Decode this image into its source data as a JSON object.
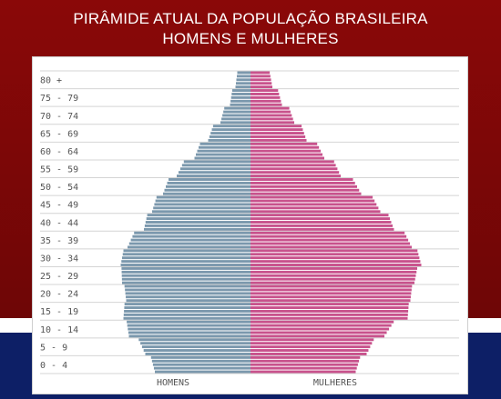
{
  "slide": {
    "title_line1": "PIRÂMIDE ATUAL DA POPULAÇÃO BRASILEIRA",
    "title_line2": "HOMENS E MULHERES"
  },
  "colors": {
    "background_top": "#7a0a0a",
    "background_bottom": "#0d1f66",
    "men_bar": "#7b98ad",
    "women_bar": "#c8528c"
  },
  "chart_data": {
    "type": "bar",
    "orientation": "horizontal-population-pyramid",
    "title": "",
    "age_groups": [
      "0 - 4",
      "5 - 9",
      "10 - 14",
      "15 - 19",
      "20 - 24",
      "25 - 29",
      "30 - 34",
      "35 - 39",
      "40 - 44",
      "45 - 49",
      "50 - 54",
      "55 - 59",
      "60 - 64",
      "65 - 69",
      "70 - 74",
      "75 - 79",
      "80 +"
    ],
    "sex_labels": {
      "men": "HOMENS",
      "women": "MULHERES"
    },
    "x_units": "relative population (0–100, no scale printed)",
    "grid": true,
    "series": [
      {
        "name": "HOMENS",
        "values": [
          70,
          77,
          89,
          93,
          91,
          94,
          95,
          90,
          78,
          72,
          64,
          54,
          41,
          31,
          22,
          15,
          11
        ]
      },
      {
        "name": "MULHERES",
        "values": [
          77,
          85,
          98,
          115,
          117,
          120,
          125,
          118,
          105,
          95,
          81,
          66,
          54,
          41,
          32,
          23,
          16
        ]
      }
    ]
  }
}
